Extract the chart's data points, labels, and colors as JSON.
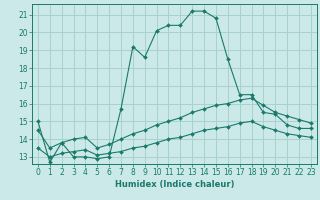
{
  "xlabel": "Humidex (Indice chaleur)",
  "bg_color": "#cce9e9",
  "grid_color": "#aad0d0",
  "line_color": "#1a7a6a",
  "xlim": [
    -0.5,
    23.5
  ],
  "ylim": [
    12.6,
    21.6
  ],
  "xticks": [
    0,
    1,
    2,
    3,
    4,
    5,
    6,
    7,
    8,
    9,
    10,
    11,
    12,
    13,
    14,
    15,
    16,
    17,
    18,
    19,
    20,
    21,
    22,
    23
  ],
  "yticks": [
    13,
    14,
    15,
    16,
    17,
    18,
    19,
    20,
    21
  ],
  "curve1_x": [
    0,
    1,
    2,
    3,
    4,
    5,
    6,
    7,
    8,
    9,
    10,
    11,
    12,
    13,
    14,
    15,
    16,
    17,
    18,
    19,
    20,
    21,
    22,
    23
  ],
  "curve1_y": [
    15.0,
    12.7,
    13.8,
    13.0,
    13.0,
    12.9,
    13.0,
    15.7,
    19.2,
    18.6,
    20.1,
    20.4,
    20.4,
    21.2,
    21.2,
    20.8,
    18.5,
    16.5,
    16.5,
    15.5,
    15.4,
    14.8,
    14.6,
    14.6
  ],
  "curve2_x": [
    0,
    1,
    2,
    3,
    4,
    5,
    6,
    7,
    8,
    9,
    10,
    11,
    12,
    13,
    14,
    15,
    16,
    17,
    18,
    19,
    20,
    21,
    22,
    23
  ],
  "curve2_y": [
    14.5,
    13.5,
    13.8,
    14.0,
    14.1,
    13.5,
    13.7,
    14.0,
    14.3,
    14.5,
    14.8,
    15.0,
    15.2,
    15.5,
    15.7,
    15.9,
    16.0,
    16.2,
    16.3,
    15.9,
    15.5,
    15.3,
    15.1,
    14.9
  ],
  "curve3_x": [
    0,
    1,
    2,
    3,
    4,
    5,
    6,
    7,
    8,
    9,
    10,
    11,
    12,
    13,
    14,
    15,
    16,
    17,
    18,
    19,
    20,
    21,
    22,
    23
  ],
  "curve3_y": [
    13.5,
    13.0,
    13.2,
    13.3,
    13.4,
    13.1,
    13.2,
    13.3,
    13.5,
    13.6,
    13.8,
    14.0,
    14.1,
    14.3,
    14.5,
    14.6,
    14.7,
    14.9,
    15.0,
    14.7,
    14.5,
    14.3,
    14.2,
    14.1
  ],
  "xlabel_fontsize": 6.0,
  "tick_fontsize": 5.5
}
